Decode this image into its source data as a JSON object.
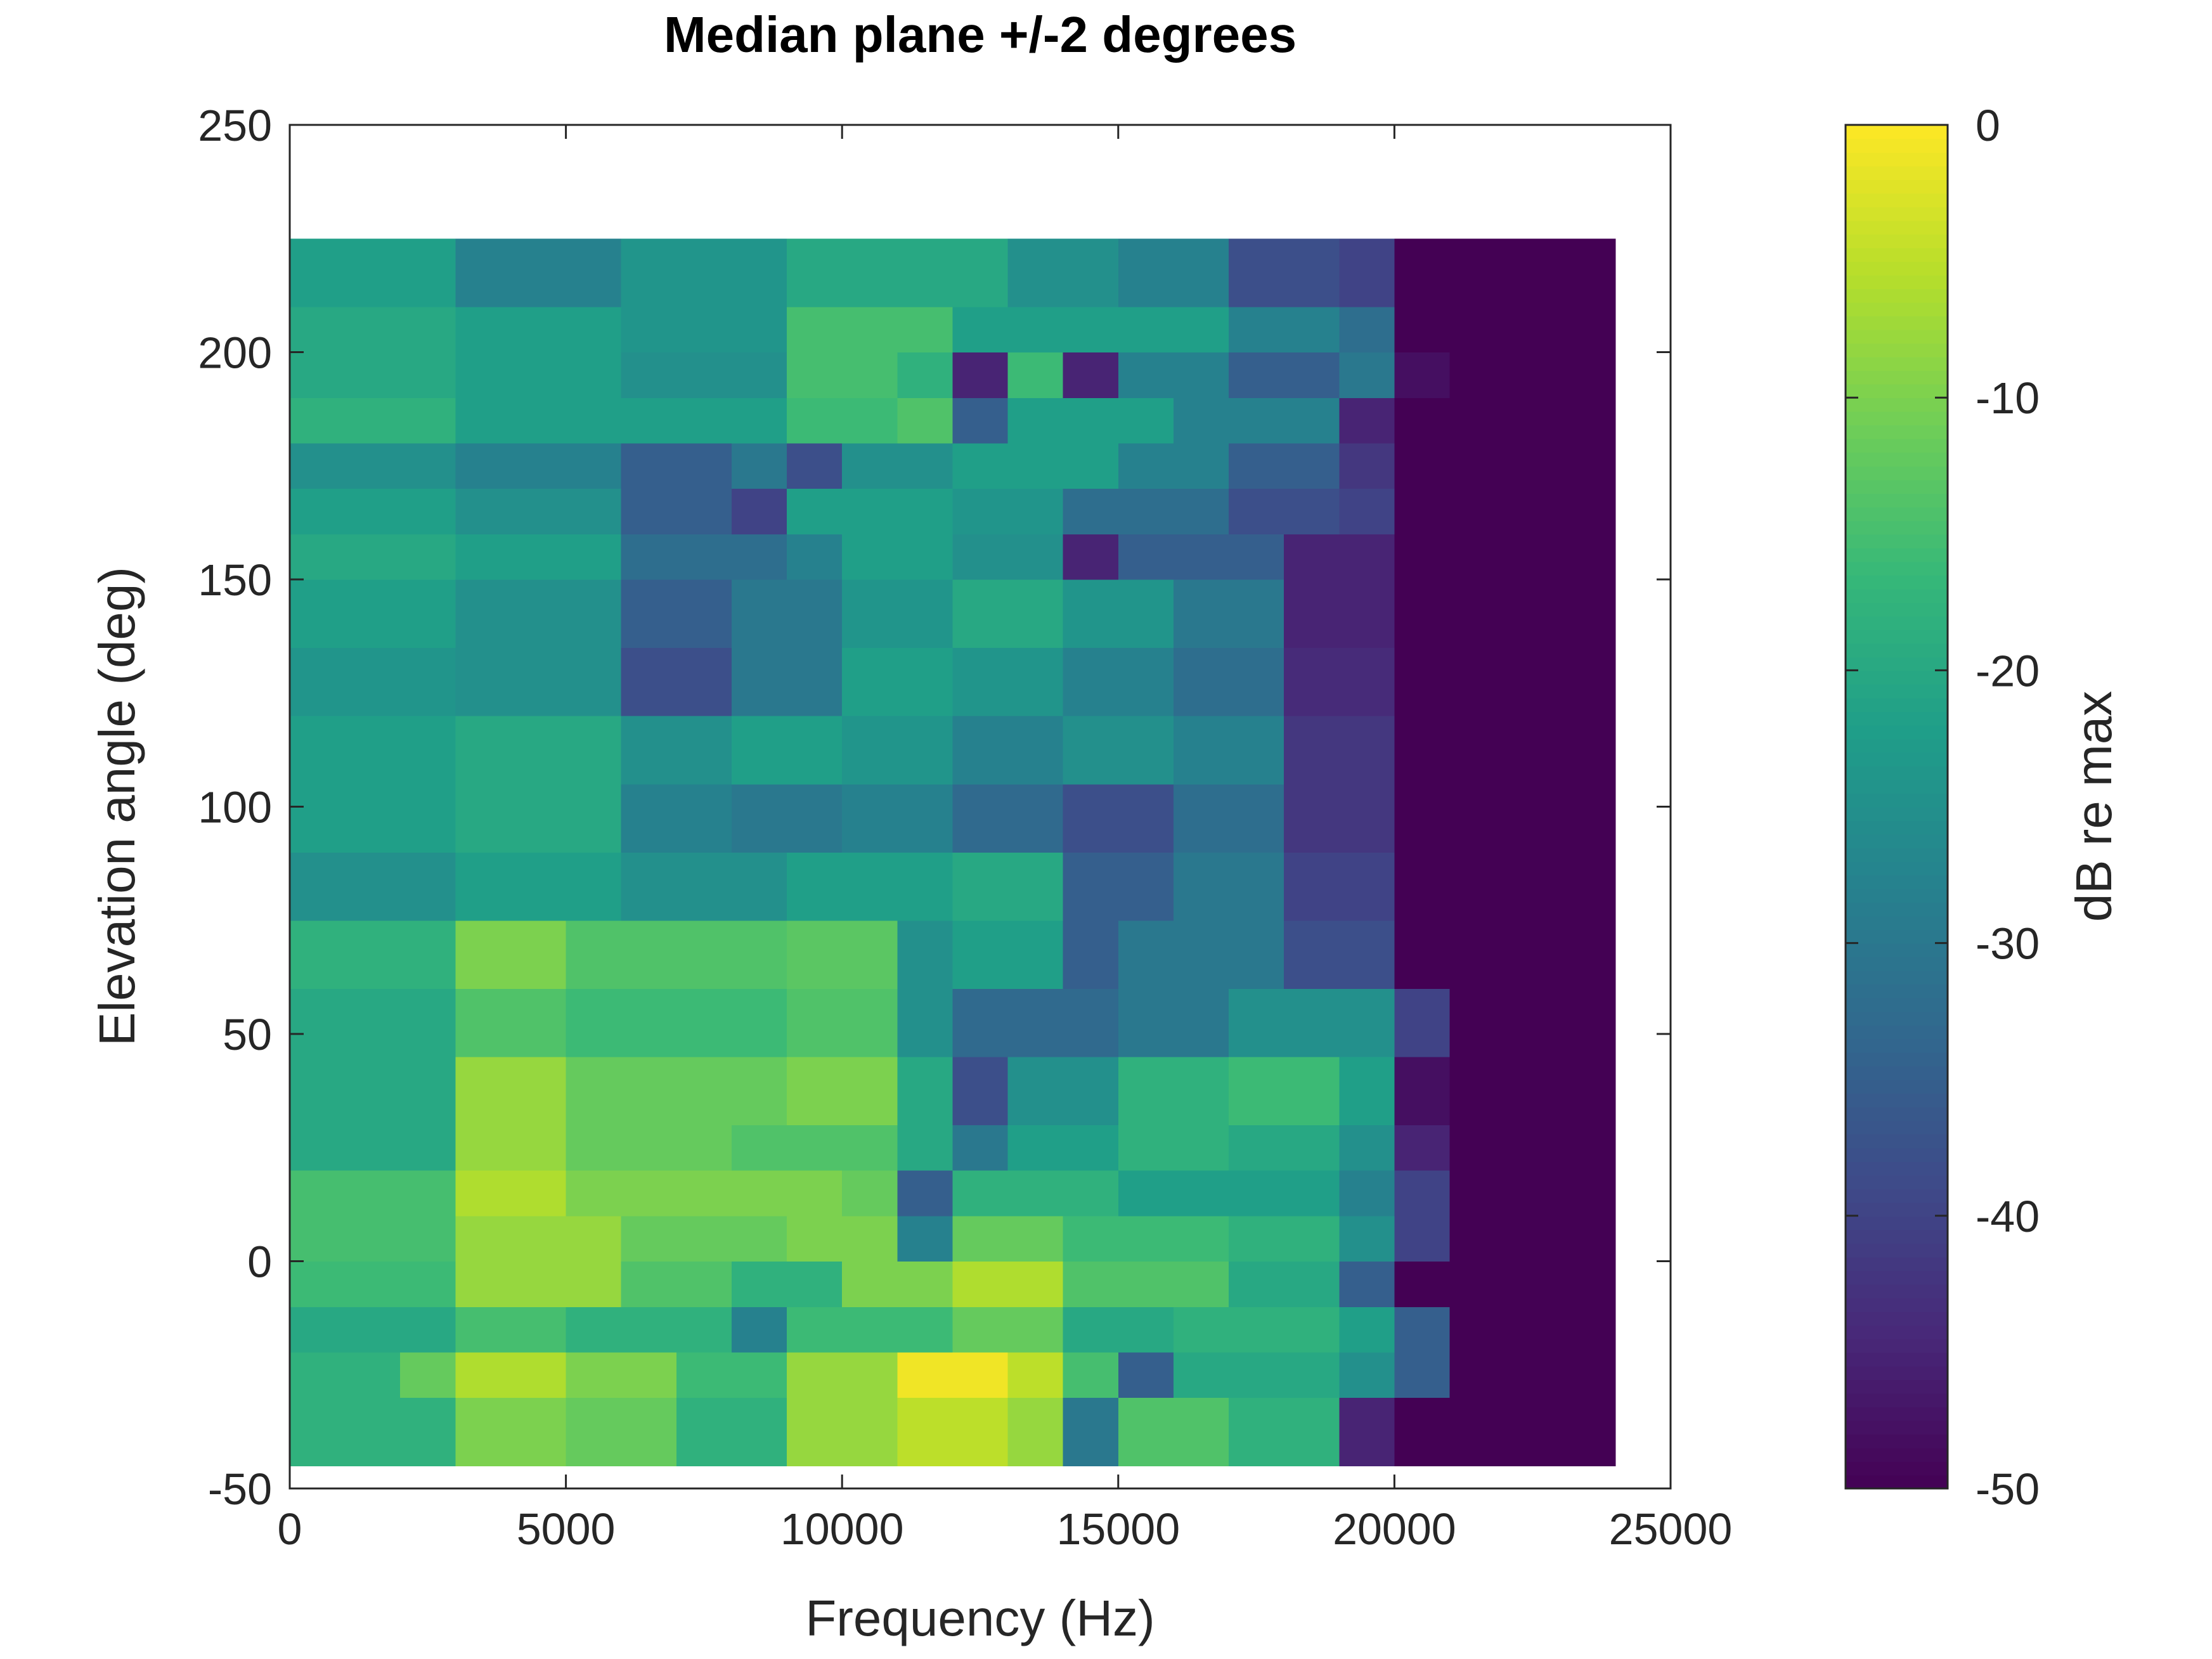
{
  "chart_data": {
    "type": "heatmap",
    "title": "Median plane +/-2 degrees",
    "xlabel": "Frequency (Hz)",
    "ylabel": "Elevation angle (deg)",
    "colorbar_label": "dB re max",
    "colormap": "viridis",
    "xlim": [
      0,
      25000
    ],
    "xticks": [
      0,
      5000,
      10000,
      15000,
      20000,
      25000
    ],
    "ylim": [
      -50,
      250
    ],
    "yticks": [
      -50,
      0,
      50,
      100,
      150,
      200,
      250
    ],
    "clim": [
      -50,
      0
    ],
    "cticks": [
      -50,
      -40,
      -30,
      -20,
      -10,
      0
    ],
    "x_bins": [
      0,
      1000,
      2000,
      3000,
      4000,
      5000,
      6000,
      7000,
      8000,
      9000,
      10000,
      11000,
      12000,
      13000,
      14000,
      15000,
      16000,
      17000,
      18000,
      19000,
      20000,
      21000,
      22000,
      23000,
      24000
    ],
    "y_bins": [
      -45,
      -30,
      -20,
      -10,
      0,
      10,
      20,
      30,
      45,
      60,
      75,
      90,
      105,
      120,
      135,
      150,
      160,
      170,
      180,
      190,
      200,
      210,
      225
    ],
    "z": [
      [
        -18,
        -18,
        -18,
        -10,
        -10,
        -12,
        -12,
        -18,
        -18,
        -8,
        -8,
        -5,
        -5,
        -8,
        -30,
        -14,
        -14,
        -18,
        -18,
        -45,
        -50,
        -50,
        -50,
        -50
      ],
      [
        -18,
        -18,
        -12,
        -6,
        -6,
        -10,
        -10,
        -16,
        -16,
        -8,
        -8,
        -1,
        -1,
        -5,
        -15,
        -35,
        -20,
        -20,
        -20,
        -25,
        -35,
        -50,
        -50,
        -50
      ],
      [
        -20,
        -20,
        -20,
        -15,
        -15,
        -18,
        -18,
        -18,
        -28,
        -16,
        -16,
        -16,
        -12,
        -12,
        -20,
        -20,
        -18,
        -18,
        -18,
        -22,
        -35,
        -50,
        -50,
        -50
      ],
      [
        -16,
        -16,
        -16,
        -8,
        -8,
        -8,
        -14,
        -14,
        -18,
        -18,
        -10,
        -10,
        -6,
        -6,
        -14,
        -14,
        -14,
        -20,
        -20,
        -35,
        -50,
        -50,
        -50,
        -50
      ],
      [
        -15,
        -15,
        -15,
        -8,
        -8,
        -8,
        -12,
        -12,
        -12,
        -10,
        -10,
        -28,
        -12,
        -12,
        -16,
        -16,
        -16,
        -18,
        -18,
        -25,
        -40,
        -50,
        -50,
        -50
      ],
      [
        -15,
        -15,
        -15,
        -6,
        -6,
        -10,
        -10,
        -10,
        -10,
        -10,
        -12,
        -35,
        -18,
        -18,
        -18,
        -22,
        -22,
        -22,
        -22,
        -28,
        -40,
        -50,
        -50,
        -50
      ],
      [
        -20,
        -20,
        -20,
        -8,
        -8,
        -12,
        -12,
        -12,
        -14,
        -14,
        -14,
        -20,
        -30,
        -22,
        -22,
        -18,
        -18,
        -20,
        -20,
        -25,
        -45,
        -50,
        -50,
        -50
      ],
      [
        -20,
        -20,
        -20,
        -8,
        -8,
        -12,
        -12,
        -12,
        -12,
        -10,
        -10,
        -20,
        -38,
        -25,
        -25,
        -18,
        -18,
        -16,
        -16,
        -22,
        -48,
        -50,
        -50,
        -50
      ],
      [
        -20,
        -20,
        -20,
        -14,
        -14,
        -16,
        -16,
        -16,
        -16,
        -14,
        -14,
        -25,
        -33,
        -33,
        -33,
        -30,
        -30,
        -25,
        -25,
        -25,
        -40,
        -50,
        -50,
        -50
      ],
      [
        -18,
        -18,
        -18,
        -10,
        -10,
        -14,
        -14,
        -14,
        -14,
        -13,
        -13,
        -25,
        -22,
        -22,
        -35,
        -30,
        -30,
        -30,
        -38,
        -38,
        -50,
        -50,
        -50,
        -50
      ],
      [
        -25,
        -25,
        -25,
        -22,
        -22,
        -22,
        -25,
        -25,
        -25,
        -22,
        -22,
        -22,
        -20,
        -20,
        -35,
        -35,
        -30,
        -30,
        -40,
        -40,
        -50,
        -50,
        -50,
        -50
      ],
      [
        -22,
        -22,
        -22,
        -20,
        -20,
        -20,
        -28,
        -28,
        -30,
        -30,
        -28,
        -28,
        -33,
        -33,
        -38,
        -38,
        -32,
        -32,
        -42,
        -42,
        -50,
        -50,
        -50,
        -50
      ],
      [
        -22,
        -22,
        -22,
        -20,
        -20,
        -20,
        -25,
        -25,
        -22,
        -22,
        -24,
        -24,
        -28,
        -28,
        -25,
        -25,
        -28,
        -28,
        -42,
        -42,
        -50,
        -50,
        -50,
        -50
      ],
      [
        -24,
        -24,
        -24,
        -25,
        -25,
        -25,
        -38,
        -38,
        -30,
        -30,
        -22,
        -22,
        -24,
        -24,
        -28,
        -28,
        -32,
        -32,
        -44,
        -44,
        -50,
        -50,
        -50,
        -50
      ],
      [
        -22,
        -22,
        -22,
        -25,
        -25,
        -25,
        -35,
        -35,
        -30,
        -30,
        -24,
        -24,
        -20,
        -20,
        -24,
        -24,
        -30,
        -30,
        -45,
        -45,
        -50,
        -50,
        -50,
        -50
      ],
      [
        -20,
        -20,
        -20,
        -22,
        -22,
        -22,
        -32,
        -32,
        -32,
        -28,
        -22,
        -22,
        -25,
        -25,
        -45,
        -35,
        -35,
        -35,
        -45,
        -45,
        -50,
        -50,
        -50,
        -50
      ],
      [
        -22,
        -22,
        -22,
        -25,
        -25,
        -25,
        -35,
        -35,
        -40,
        -22,
        -22,
        -22,
        -24,
        -24,
        -32,
        -32,
        -32,
        -38,
        -38,
        -40,
        -50,
        -50,
        -50,
        -50
      ],
      [
        -25,
        -25,
        -25,
        -28,
        -28,
        -28,
        -35,
        -35,
        -30,
        -38,
        -25,
        -25,
        -22,
        -22,
        -22,
        -28,
        -28,
        -35,
        -35,
        -42,
        -50,
        -50,
        -50,
        -50
      ],
      [
        -18,
        -18,
        -18,
        -22,
        -22,
        -22,
        -22,
        -22,
        -22,
        -16,
        -16,
        -14,
        -35,
        -22,
        -22,
        -22,
        -28,
        -28,
        -28,
        -45,
        -50,
        -50,
        -50,
        -50
      ],
      [
        -20,
        -20,
        -20,
        -22,
        -22,
        -22,
        -25,
        -25,
        -25,
        -15,
        -15,
        -18,
        -45,
        -16,
        -45,
        -28,
        -28,
        -35,
        -35,
        -30,
        -48,
        -50,
        -50,
        -50
      ],
      [
        -20,
        -20,
        -20,
        -22,
        -22,
        -22,
        -24,
        -24,
        -24,
        -15,
        -15,
        -15,
        -22,
        -22,
        -22,
        -22,
        -22,
        -28,
        -28,
        -32,
        -50,
        -50,
        -50,
        -50
      ],
      [
        -22,
        -22,
        -22,
        -28,
        -28,
        -28,
        -24,
        -24,
        -24,
        -20,
        -20,
        -20,
        -20,
        -25,
        -25,
        -28,
        -28,
        -38,
        -38,
        -40,
        -50,
        -50,
        -50,
        -50
      ]
    ]
  }
}
